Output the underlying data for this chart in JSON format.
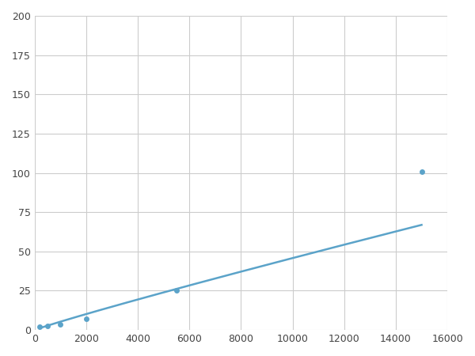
{
  "x": [
    200,
    500,
    1000,
    2000,
    5500,
    15000
  ],
  "y": [
    2,
    2.5,
    3.5,
    7,
    25,
    101
  ],
  "line_color": "#5BA3C9",
  "marker_color": "#5BA3C9",
  "marker_size": 5,
  "line_width": 1.8,
  "xlim": [
    0,
    16000
  ],
  "ylim": [
    0,
    200
  ],
  "xticks": [
    0,
    2000,
    4000,
    6000,
    8000,
    10000,
    12000,
    14000,
    16000
  ],
  "yticks": [
    0,
    25,
    50,
    75,
    100,
    125,
    150,
    175,
    200
  ],
  "grid_color": "#cccccc",
  "background_color": "#ffffff",
  "power_a": 0.00015,
  "power_b": 1.72
}
